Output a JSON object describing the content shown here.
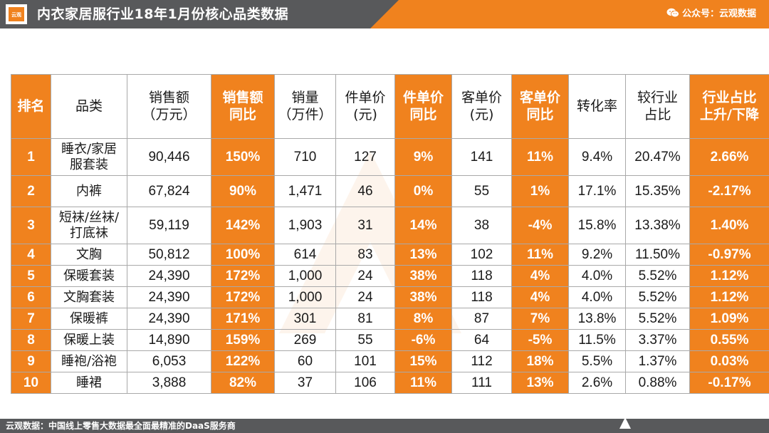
{
  "header": {
    "logo_text": "云观",
    "title": "内衣家居服行业18年1月份核心品类数据",
    "wechat_label": "公众号：云观数据"
  },
  "colors": {
    "accent": "#f0821e",
    "header_bg": "#58595b",
    "border": "#a9a9a9"
  },
  "table": {
    "headers": [
      "排名",
      "品类",
      "销售额\n（万元）",
      "销售额\n同比",
      "销量\n（万件）",
      "件单价\n(元)",
      "件单价\n同比",
      "客单价\n(元)",
      "客单价\n同比",
      "转化率",
      "较行业\n占比",
      "行业占比\n上升/下降"
    ],
    "rows": [
      [
        "1",
        "睡衣/家居\n服套装",
        "90,446",
        "150%",
        "710",
        "127",
        "9%",
        "141",
        "11%",
        "9.4%",
        "20.47%",
        "2.66%"
      ],
      [
        "2",
        "内裤",
        "67,824",
        "90%",
        "1,471",
        "46",
        "0%",
        "55",
        "1%",
        "17.1%",
        "15.35%",
        "-2.17%"
      ],
      [
        "3",
        "短袜/丝袜/\n打底袜",
        "59,119",
        "142%",
        "1,903",
        "31",
        "14%",
        "38",
        "-4%",
        "15.8%",
        "13.38%",
        "1.40%"
      ],
      [
        "4",
        "文胸",
        "50,812",
        "100%",
        "614",
        "83",
        "13%",
        "102",
        "11%",
        "9.2%",
        "11.50%",
        "-0.97%"
      ],
      [
        "5",
        "保暖套装",
        "24,390",
        "172%",
        "1,000",
        "24",
        "38%",
        "118",
        "4%",
        "4.0%",
        "5.52%",
        "1.12%"
      ],
      [
        "6",
        "文胸套装",
        "24,390",
        "172%",
        "1,000",
        "24",
        "38%",
        "118",
        "4%",
        "4.0%",
        "5.52%",
        "1.12%"
      ],
      [
        "7",
        "保暖裤",
        "24,390",
        "171%",
        "301",
        "81",
        "8%",
        "87",
        "7%",
        "13.8%",
        "5.52%",
        "1.09%"
      ],
      [
        "8",
        "保暖上装",
        "14,890",
        "159%",
        "269",
        "55",
        "-6%",
        "64",
        "-5%",
        "11.5%",
        "3.37%",
        "0.55%"
      ],
      [
        "9",
        "睡袍/浴袍",
        "6,053",
        "122%",
        "60",
        "101",
        "15%",
        "112",
        "18%",
        "5.5%",
        "1.37%",
        "0.03%"
      ],
      [
        "10",
        "睡裙",
        "3,888",
        "82%",
        "37",
        "106",
        "11%",
        "111",
        "13%",
        "2.6%",
        "0.88%",
        "-0.17%"
      ]
    ]
  },
  "footer": {
    "text": "云观数据：中国线上零售大数据最全面最精准的DaaS服务商"
  }
}
